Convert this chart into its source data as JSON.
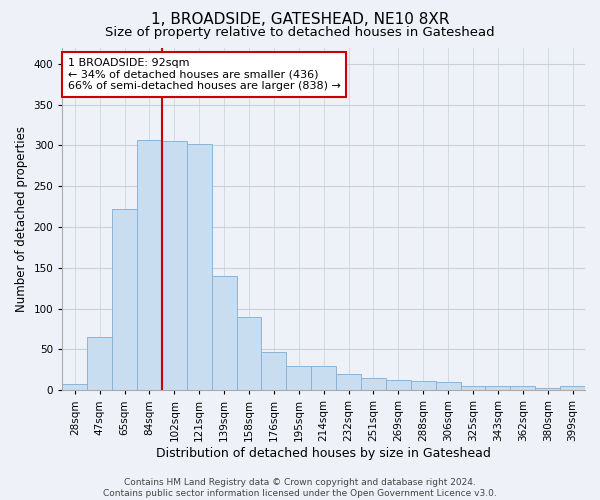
{
  "title": "1, BROADSIDE, GATESHEAD, NE10 8XR",
  "subtitle": "Size of property relative to detached houses in Gateshead",
  "xlabel": "Distribution of detached houses by size in Gateshead",
  "ylabel": "Number of detached properties",
  "categories": [
    "28sqm",
    "47sqm",
    "65sqm",
    "84sqm",
    "102sqm",
    "121sqm",
    "139sqm",
    "158sqm",
    "176sqm",
    "195sqm",
    "214sqm",
    "232sqm",
    "251sqm",
    "269sqm",
    "288sqm",
    "306sqm",
    "325sqm",
    "343sqm",
    "362sqm",
    "380sqm",
    "399sqm"
  ],
  "values": [
    8,
    65,
    222,
    307,
    305,
    302,
    140,
    90,
    47,
    30,
    30,
    20,
    15,
    12,
    11,
    10,
    5,
    5,
    5,
    3,
    5
  ],
  "bar_color": "#c9ddf0",
  "bar_edge_color": "#8ab4d8",
  "vline_color": "#cc0000",
  "annotation_text": "1 BROADSIDE: 92sqm\n← 34% of detached houses are smaller (436)\n66% of semi-detached houses are larger (838) →",
  "annotation_box_color": "#ffffff",
  "annotation_box_edge": "#cc0000",
  "ylim": [
    0,
    420
  ],
  "yticks": [
    0,
    50,
    100,
    150,
    200,
    250,
    300,
    350,
    400
  ],
  "grid_color": "#c8d0dc",
  "background_color": "#eef2f8",
  "footer_line1": "Contains HM Land Registry data © Crown copyright and database right 2024.",
  "footer_line2": "Contains public sector information licensed under the Open Government Licence v3.0.",
  "title_fontsize": 11,
  "subtitle_fontsize": 9.5,
  "xlabel_fontsize": 9,
  "ylabel_fontsize": 8.5,
  "tick_fontsize": 7.5,
  "annotation_fontsize": 8,
  "footer_fontsize": 6.5
}
